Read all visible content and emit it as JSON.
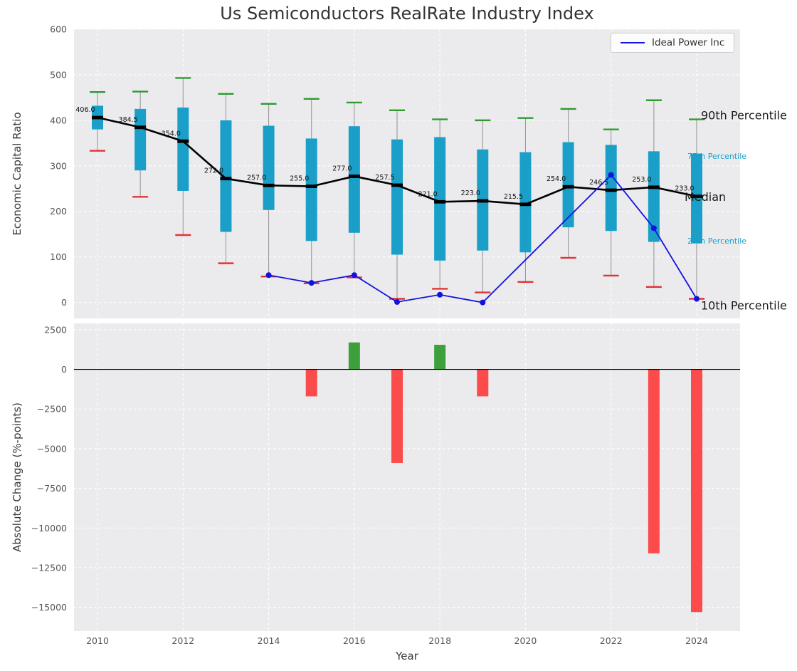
{
  "title": "Us Semiconductors RealRate Industry Index",
  "colors": {
    "plot_bg": "#ebebee",
    "grid": "#ffffff",
    "tick": "#555555",
    "box": "#1a9fc8",
    "p90_cap": "#2e9b2e",
    "p10_cap": "#e23434",
    "median": "#000000",
    "company": "#1212e0",
    "bar_pos": "#3da03d",
    "bar_neg": "#fb4b4b",
    "whisker": "#9a9a9a",
    "annotation_big": "#1a1a1a"
  },
  "chart_data": [
    {
      "type": "box-whisker-with-median-line",
      "title": "Us Semiconductors RealRate Industry Index",
      "ylabel": "Economic Capital Ratio",
      "ylim": [
        -35,
        600
      ],
      "yticks": [
        {
          "v": 600,
          "label": "600"
        },
        {
          "v": 500,
          "label": "500"
        },
        {
          "v": 400,
          "label": "400"
        },
        {
          "v": 300,
          "label": "300"
        },
        {
          "v": 200,
          "label": "200"
        },
        {
          "v": 100,
          "label": "100"
        },
        {
          "v": 0,
          "label": "0"
        }
      ],
      "grid_years": [
        2010,
        2012,
        2014,
        2016,
        2018,
        2020,
        2022,
        2024
      ],
      "years": [
        2010,
        2011,
        2012,
        2013,
        2014,
        2015,
        2016,
        2017,
        2018,
        2019,
        2020,
        2021,
        2022,
        2023,
        2024
      ],
      "p90": [
        462,
        463,
        493,
        458,
        436,
        447,
        439,
        422,
        402,
        400,
        405,
        425,
        380,
        444,
        402
      ],
      "p75": [
        432,
        425,
        428,
        400,
        388,
        360,
        387,
        358,
        363,
        336,
        330,
        352,
        346,
        332,
        327
      ],
      "median": [
        406.0,
        384.5,
        354.0,
        272.0,
        257.0,
        255.0,
        277.0,
        257.5,
        221.0,
        223.0,
        215.5,
        254.0,
        246.5,
        253.0,
        233.0
      ],
      "p25": [
        380,
        290,
        245,
        155,
        203,
        135,
        153,
        105,
        92,
        114,
        110,
        165,
        157,
        133,
        130
      ],
      "p10": [
        333,
        232,
        148,
        86,
        57,
        42,
        55,
        8,
        30,
        22,
        45,
        98,
        59,
        34,
        8
      ],
      "median_labels": [
        "406.0",
        "384.5",
        "354.0",
        "272.0",
        "257.0",
        "255.0",
        "277.0",
        "257.5",
        "221.0",
        "223.0",
        "215.5",
        "254.0",
        "246.5",
        "253.0",
        "233.0"
      ],
      "company": {
        "name": "Ideal Power Inc",
        "x": [
          2014,
          2015,
          2016,
          2017,
          2018,
          2019,
          2022,
          2023,
          2024
        ],
        "y": [
          60,
          43,
          60,
          1,
          17,
          0,
          280,
          163,
          8
        ]
      },
      "legend": {
        "label": "Ideal Power Inc"
      },
      "right_labels": [
        {
          "text": "90th Percentile",
          "v": 410,
          "x": 985,
          "style": "big"
        },
        {
          "text": "75th Percentile",
          "v": 323,
          "x": 966,
          "style": "small"
        },
        {
          "text": "Median",
          "v": 231,
          "x": 962,
          "style": "big"
        },
        {
          "text": "25th Percentile",
          "v": 137,
          "x": 966,
          "style": "small"
        },
        {
          "text": "10th Percentile",
          "v": -8,
          "x": 985,
          "style": "big"
        }
      ]
    },
    {
      "type": "bar",
      "ylabel": "Absolute Change (%-points)",
      "xlabel": "Year",
      "ylim": [
        -16500,
        2900
      ],
      "yticks": [
        {
          "v": 2500,
          "label": "2500"
        },
        {
          "v": 0,
          "label": "0"
        },
        {
          "v": -2500,
          "label": "−2500"
        },
        {
          "v": -5000,
          "label": "−5000"
        },
        {
          "v": -7500,
          "label": "−7500"
        },
        {
          "v": -10000,
          "label": "−10000"
        },
        {
          "v": -12500,
          "label": "−12500"
        },
        {
          "v": -15000,
          "label": "−15000"
        }
      ],
      "xticks": [
        {
          "v": 2010,
          "label": "2010"
        },
        {
          "v": 2012,
          "label": "2012"
        },
        {
          "v": 2014,
          "label": "2014"
        },
        {
          "v": 2016,
          "label": "2016"
        },
        {
          "v": 2018,
          "label": "2018"
        },
        {
          "v": 2020,
          "label": "2020"
        },
        {
          "v": 2022,
          "label": "2022"
        },
        {
          "v": 2024,
          "label": "2024"
        }
      ],
      "bars": [
        {
          "year": 2015,
          "value": -1700
        },
        {
          "year": 2016,
          "value": 1700
        },
        {
          "year": 2017,
          "value": -5900
        },
        {
          "year": 2018,
          "value": 1550
        },
        {
          "year": 2019,
          "value": -1700
        },
        {
          "year": 2023,
          "value": -11600
        },
        {
          "year": 2024,
          "value": -15300
        }
      ]
    }
  ]
}
